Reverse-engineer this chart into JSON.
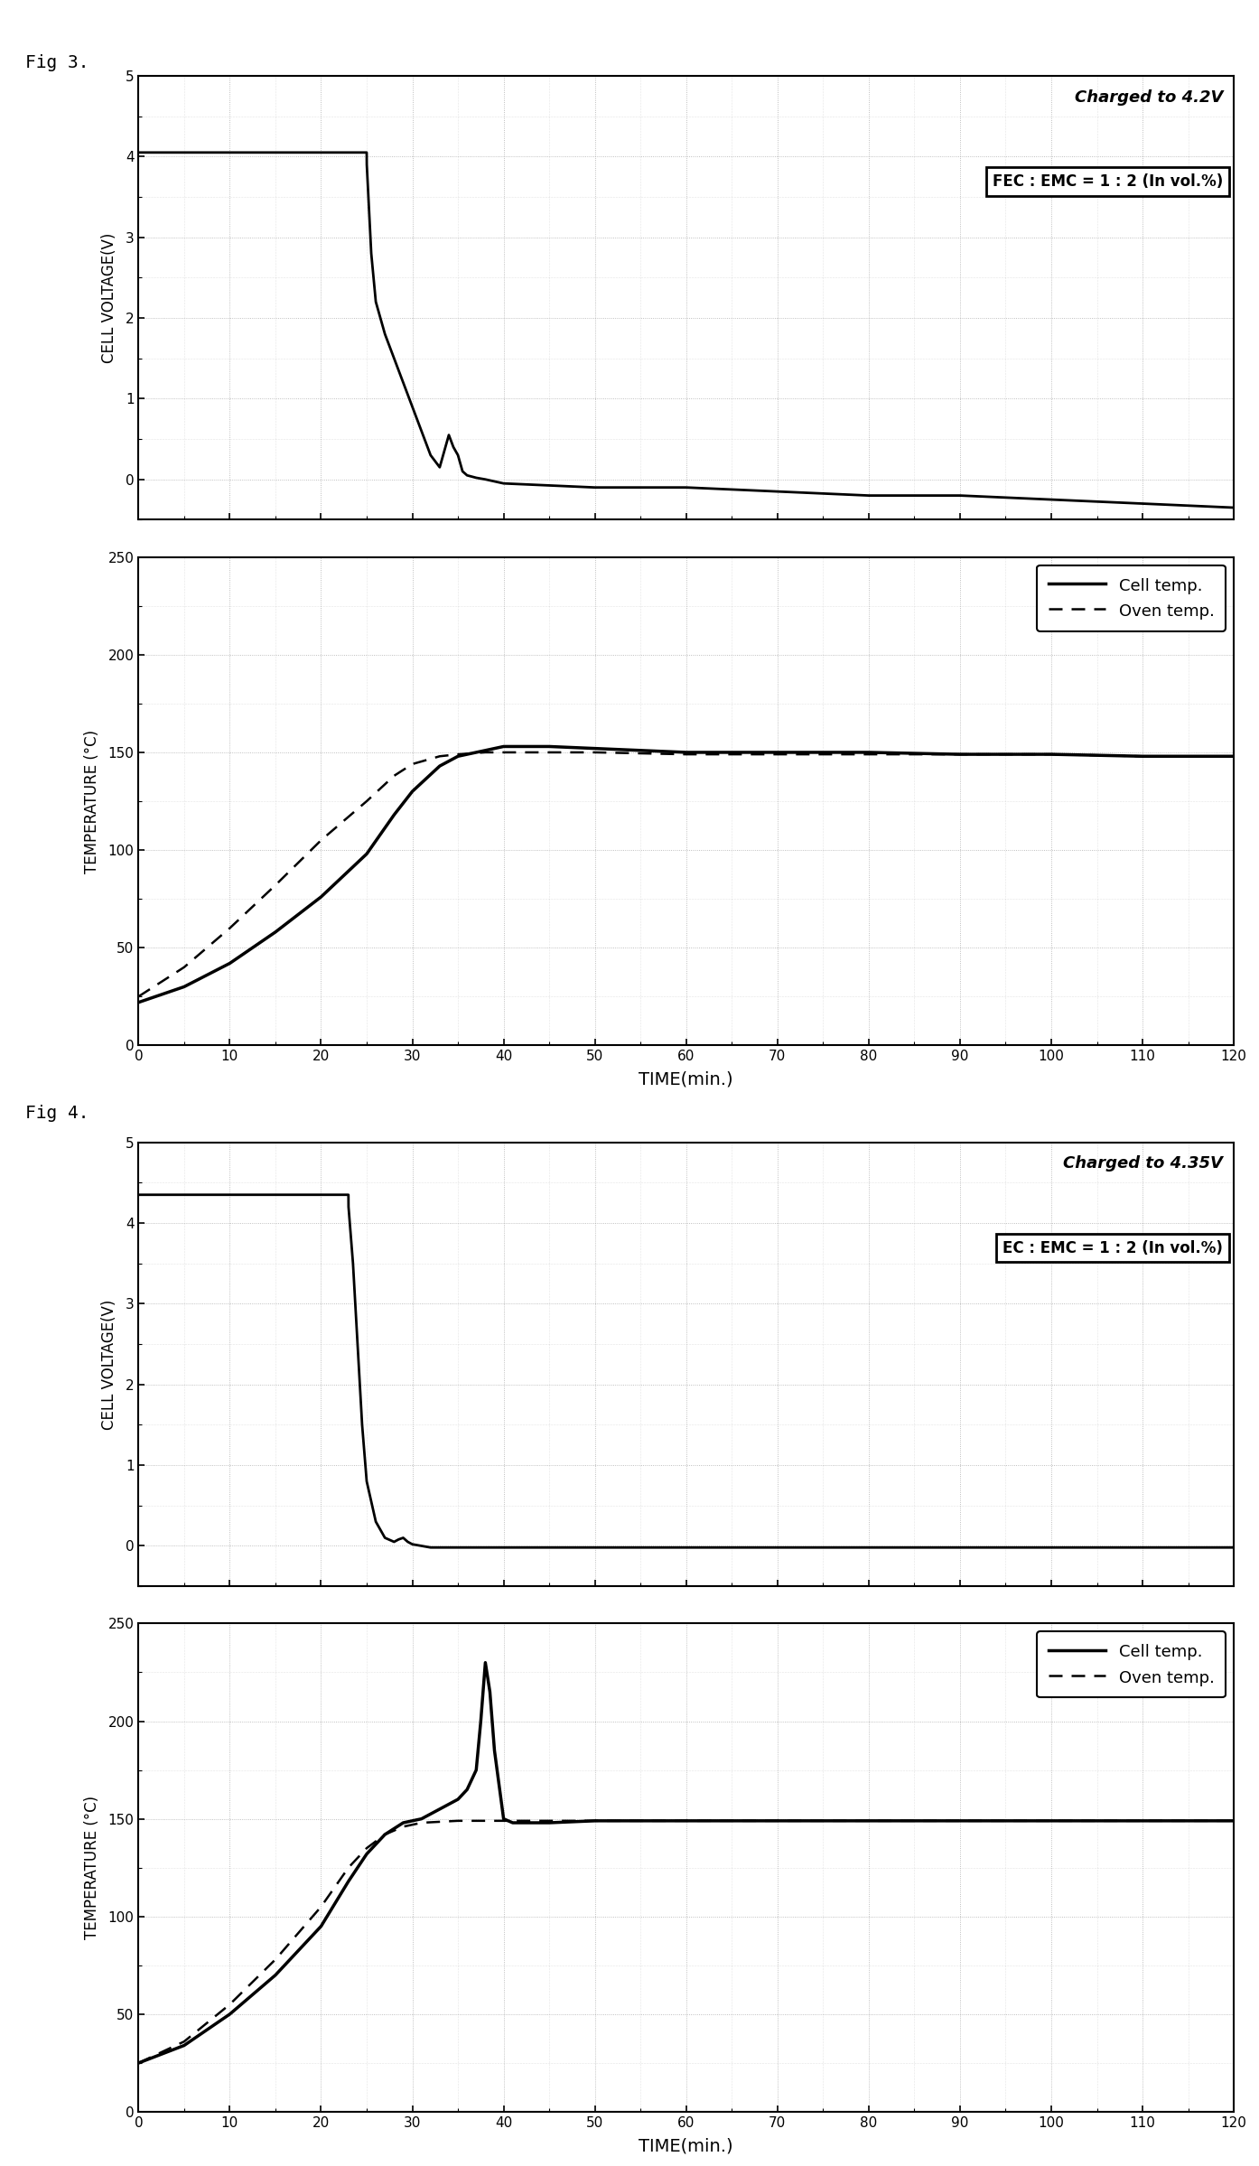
{
  "fig3": {
    "title": "Fig 3.",
    "voltage_annotation": "Charged to 4.2V",
    "electrolyte_annotation": "FEC : EMC = 1 : 2 (In vol.%)",
    "voltage_ylim": [
      -0.5,
      5
    ],
    "voltage_yticks": [
      0,
      1,
      2,
      3,
      4,
      5
    ],
    "temp_ylim": [
      0,
      250
    ],
    "temp_yticks": [
      0,
      50,
      100,
      150,
      200,
      250
    ],
    "xlim": [
      0,
      120
    ],
    "xticks": [
      0,
      10,
      20,
      30,
      40,
      50,
      60,
      70,
      80,
      90,
      100,
      110,
      120
    ],
    "voltage_data": {
      "t": [
        0,
        25.0,
        25.01,
        25.5,
        26,
        27,
        28,
        29,
        30,
        31,
        32,
        33,
        33.5,
        34,
        34.5,
        35,
        35.5,
        36,
        37,
        38,
        40,
        50,
        60,
        70,
        80,
        90,
        100,
        110,
        120
      ],
      "v": [
        4.05,
        4.05,
        3.9,
        2.8,
        2.2,
        1.8,
        1.5,
        1.2,
        0.9,
        0.6,
        0.3,
        0.15,
        0.35,
        0.55,
        0.4,
        0.3,
        0.1,
        0.05,
        0.02,
        0.0,
        -0.05,
        -0.1,
        -0.1,
        -0.15,
        -0.2,
        -0.2,
        -0.25,
        -0.3,
        -0.35
      ]
    },
    "cell_temp_data": {
      "t": [
        0,
        5,
        10,
        15,
        20,
        25,
        28,
        30,
        33,
        35,
        38,
        40,
        45,
        50,
        55,
        60,
        70,
        80,
        90,
        100,
        110,
        120
      ],
      "temp": [
        22,
        30,
        42,
        58,
        76,
        98,
        118,
        130,
        143,
        148,
        151,
        153,
        153,
        152,
        151,
        150,
        150,
        150,
        149,
        149,
        148,
        148
      ]
    },
    "oven_temp_data": {
      "t": [
        0,
        5,
        10,
        15,
        20,
        25,
        28,
        30,
        33,
        35,
        38,
        40,
        45,
        50,
        60,
        70,
        80,
        90,
        100,
        110,
        120
      ],
      "temp": [
        25,
        40,
        60,
        82,
        105,
        125,
        138,
        144,
        148,
        149,
        150,
        150,
        150,
        150,
        149,
        149,
        149,
        149,
        149,
        148,
        148
      ]
    }
  },
  "fig4": {
    "title": "Fig 4.",
    "voltage_annotation": "Charged to 4.35V",
    "electrolyte_annotation": "EC : EMC = 1 : 2 (In vol.%)",
    "voltage_ylim": [
      -0.5,
      5
    ],
    "voltage_yticks": [
      0,
      1,
      2,
      3,
      4,
      5
    ],
    "temp_ylim": [
      0,
      250
    ],
    "temp_yticks": [
      0,
      50,
      100,
      150,
      200,
      250
    ],
    "xlim": [
      0,
      120
    ],
    "xticks": [
      0,
      10,
      20,
      30,
      40,
      50,
      60,
      70,
      80,
      90,
      100,
      110,
      120
    ],
    "voltage_data": {
      "t": [
        0,
        23.0,
        23.01,
        23.5,
        24.0,
        24.5,
        25.0,
        26.0,
        27.0,
        28.0,
        28.5,
        29.0,
        29.5,
        30.0,
        31.0,
        32.0,
        40,
        50,
        60,
        70,
        80,
        90,
        100,
        110,
        120
      ],
      "v": [
        4.35,
        4.35,
        4.2,
        3.5,
        2.5,
        1.5,
        0.8,
        0.3,
        0.1,
        0.05,
        0.08,
        0.1,
        0.05,
        0.02,
        0.0,
        -0.02,
        -0.02,
        -0.02,
        -0.02,
        -0.02,
        -0.02,
        -0.02,
        -0.02,
        -0.02,
        -0.02
      ]
    },
    "cell_temp_data": {
      "t": [
        0,
        5,
        10,
        15,
        20,
        23,
        25,
        27,
        29,
        31,
        33,
        35,
        36,
        37,
        37.5,
        38,
        38.5,
        39,
        40,
        41,
        43,
        45,
        50,
        60,
        70,
        80,
        90,
        100,
        110,
        120
      ],
      "temp": [
        25,
        34,
        50,
        70,
        95,
        118,
        132,
        142,
        148,
        150,
        155,
        160,
        165,
        175,
        200,
        230,
        215,
        185,
        150,
        148,
        148,
        148,
        149,
        149,
        149,
        149,
        149,
        149,
        149,
        149
      ]
    },
    "oven_temp_data": {
      "t": [
        0,
        5,
        10,
        15,
        20,
        23,
        25,
        27,
        29,
        31,
        35,
        40,
        45,
        50,
        60,
        70,
        80,
        90,
        100,
        110,
        120
      ],
      "temp": [
        25,
        36,
        55,
        78,
        105,
        125,
        135,
        142,
        146,
        148,
        149,
        149,
        149,
        149,
        149,
        149,
        149,
        149,
        149,
        149,
        149
      ]
    }
  },
  "xlabel": "TIME(min.)",
  "ylabel_voltage": "CELL VOLTAGE(V)",
  "ylabel_temp": "TEMPERATURE (°C)",
  "legend_cell": "Cell temp.",
  "legend_oven": "Oven temp.",
  "background_color": "#ffffff",
  "line_color": "#000000",
  "grid_color": "#999999"
}
